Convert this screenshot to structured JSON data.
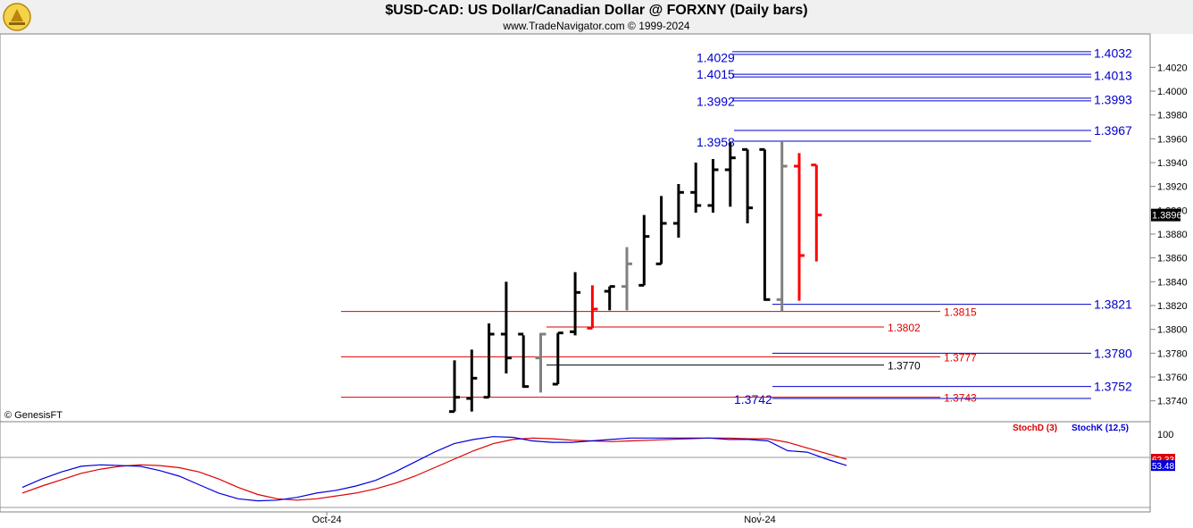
{
  "header": {
    "title": "$USD-CAD:  US Dollar/Canadian Dollar @ FORXNY  (Daily bars)",
    "subtitle": "www.TradeNavigator.com © 1999-2024"
  },
  "copyright": "© GenesisFT",
  "colors": {
    "bar_up": "#000000",
    "bar_grey": "#808080",
    "bar_red": "#ff0000",
    "level_blue": "#0000cc",
    "level_red": "#dd0000",
    "level_black": "#000000",
    "stoch_d": "#dd0000",
    "stoch_k": "#0000dd",
    "header_bg": "#f0f0f0"
  },
  "chart_data": [
    {
      "type": "ohlc",
      "title": "$USD-CAD:  US Dollar/Canadian Dollar @ FORXNY  (Daily bars)",
      "ylim": [
        1.3724,
        1.4048
      ],
      "y_ticks": [
        "1.4020",
        "1.4000",
        "1.3980",
        "1.3960",
        "1.3940",
        "1.3920",
        "1.3900",
        "1.3880",
        "1.3860",
        "1.3840",
        "1.3820",
        "1.3800",
        "1.3780",
        "1.3760",
        "1.3740"
      ],
      "x_labels": [
        {
          "label": "Oct-24",
          "bar": 12
        },
        {
          "label": "Nov-24",
          "bar": 39
        }
      ],
      "last_value": "1.3896",
      "bars": [
        {
          "o": 1.3731,
          "h": 1.3774,
          "l": 1.3731,
          "c": 1.3743,
          "color": "black"
        },
        {
          "o": 1.3742,
          "h": 1.3783,
          "l": 1.3731,
          "c": 1.3759,
          "color": "black"
        },
        {
          "o": 1.3743,
          "h": 1.3805,
          "l": 1.3743,
          "c": 1.3796,
          "color": "black"
        },
        {
          "o": 1.3796,
          "h": 1.384,
          "l": 1.3763,
          "c": 1.3776,
          "color": "black"
        },
        {
          "o": 1.3796,
          "h": 1.3795,
          "l": 1.3751,
          "c": 1.3752,
          "color": "black"
        },
        {
          "o": 1.3776,
          "h": 1.3797,
          "l": 1.3747,
          "c": 1.3796,
          "color": "grey"
        },
        {
          "o": 1.3754,
          "h": 1.3797,
          "l": 1.3754,
          "c": 1.3797,
          "color": "black"
        },
        {
          "o": 1.3798,
          "h": 1.3848,
          "l": 1.3795,
          "c": 1.3831,
          "color": "black"
        },
        {
          "o": 1.3801,
          "h": 1.3837,
          "l": 1.3801,
          "c": 1.3817,
          "color": "red"
        },
        {
          "o": 1.3832,
          "h": 1.3836,
          "l": 1.3816,
          "c": 1.3836,
          "color": "black"
        },
        {
          "o": 1.3836,
          "h": 1.3869,
          "l": 1.3816,
          "c": 1.3855,
          "color": "grey"
        },
        {
          "o": 1.3837,
          "h": 1.3896,
          "l": 1.3837,
          "c": 1.3878,
          "color": "black"
        },
        {
          "o": 1.3855,
          "h": 1.3912,
          "l": 1.3855,
          "c": 1.3889,
          "color": "black"
        },
        {
          "o": 1.3889,
          "h": 1.3922,
          "l": 1.3877,
          "c": 1.3915,
          "color": "black"
        },
        {
          "o": 1.3915,
          "h": 1.394,
          "l": 1.3898,
          "c": 1.3904,
          "color": "black"
        },
        {
          "o": 1.3904,
          "h": 1.3943,
          "l": 1.3898,
          "c": 1.3934,
          "color": "black"
        },
        {
          "o": 1.3934,
          "h": 1.3957,
          "l": 1.3903,
          "c": 1.3944,
          "color": "black"
        },
        {
          "o": 1.3951,
          "h": 1.3951,
          "l": 1.3889,
          "c": 1.3902,
          "color": "black"
        },
        {
          "o": 1.3951,
          "h": 1.3951,
          "l": 1.3824,
          "c": 1.3825,
          "color": "black"
        },
        {
          "o": 1.3825,
          "h": 1.3958,
          "l": 1.3815,
          "c": 1.3937,
          "color": "grey"
        },
        {
          "o": 1.3937,
          "h": 1.3948,
          "l": 1.3824,
          "c": 1.3862,
          "color": "red"
        },
        {
          "o": 1.3938,
          "h": 1.3938,
          "l": 1.3857,
          "c": 1.3896,
          "color": "red"
        }
      ],
      "levels_blue_right": [
        {
          "value": "1.4032",
          "y": 1.4032
        },
        {
          "value": "1.4013",
          "y": 1.4013
        },
        {
          "value": "1.3993",
          "y": 1.3993
        },
        {
          "value": "1.3967",
          "y": 1.3967
        },
        {
          "value": "1.3821",
          "y": 1.3821
        },
        {
          "value": "1.3780",
          "y": 1.378
        },
        {
          "value": "1.3752",
          "y": 1.3752
        }
      ],
      "levels_blue_left": [
        {
          "value": "1.4029",
          "y": 1.4029
        },
        {
          "value": "1.4015",
          "y": 1.4015
        },
        {
          "value": "1.3992",
          "y": 1.3992
        },
        {
          "value": "1.3958",
          "y": 1.3958
        },
        {
          "value": "1.3742",
          "y": 1.3742
        }
      ],
      "levels_red": [
        {
          "value": "1.3815",
          "y": 1.3815
        },
        {
          "value": "1.3802",
          "y": 1.3802
        },
        {
          "value": "1.3777",
          "y": 1.3777
        },
        {
          "value": "1.3743",
          "y": 1.3743
        }
      ],
      "levels_black": [
        {
          "value": "1.3770",
          "y": 1.377
        }
      ]
    },
    {
      "type": "line",
      "ylim": [
        0,
        100
      ],
      "y_ticks": [
        "100"
      ],
      "series": [
        {
          "name": "StochD (3)",
          "last": "62.33",
          "values": [
            14,
            24,
            33,
            42,
            48,
            52,
            54,
            53,
            50,
            44,
            34,
            22,
            12,
            6,
            4,
            6,
            10,
            14,
            20,
            28,
            38,
            50,
            62,
            74,
            84,
            90,
            92,
            91,
            89,
            88,
            87,
            88,
            89,
            90,
            91,
            92,
            92,
            91,
            91,
            86,
            78,
            70,
            62
          ]
        },
        {
          "name": "StochK (12,5)",
          "last": "53.48",
          "values": [
            22,
            34,
            44,
            52,
            54,
            53,
            52,
            46,
            38,
            26,
            14,
            6,
            3,
            4,
            8,
            14,
            18,
            24,
            32,
            44,
            58,
            72,
            84,
            90,
            94,
            93,
            88,
            86,
            86,
            88,
            90,
            92,
            92,
            92,
            92,
            92,
            90,
            90,
            88,
            74,
            72,
            62,
            53
          ]
        }
      ]
    }
  ]
}
